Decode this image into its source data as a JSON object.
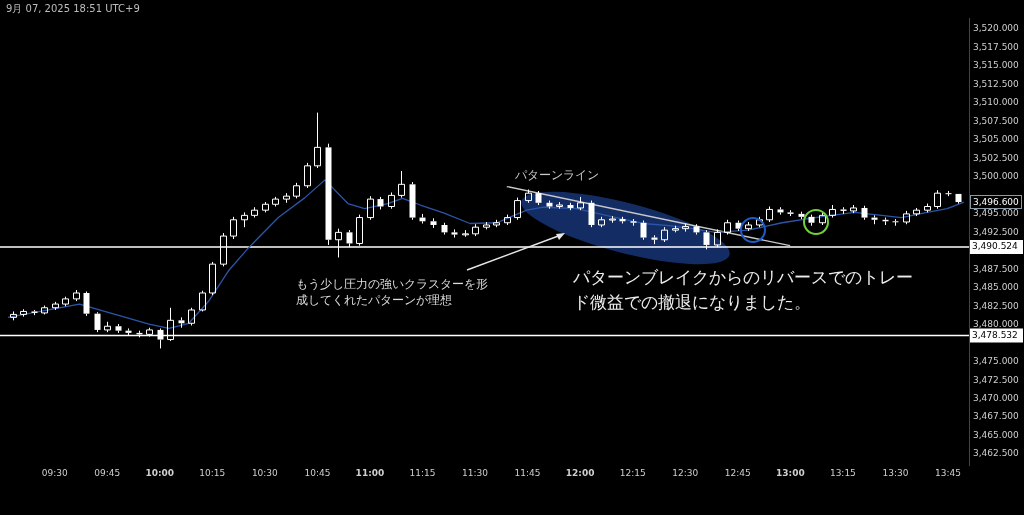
{
  "chart_data": {
    "type": "candlestick",
    "color": "#ffffff",
    "x": [
      9.3,
      9.35,
      9.4,
      9.45,
      9.5,
      9.55,
      9.6,
      9.65,
      9.7,
      9.75,
      9.8,
      9.85,
      9.9,
      9.95,
      10,
      10.05,
      10.1,
      10.15,
      10.2,
      10.25,
      10.3,
      10.35,
      10.4,
      10.45,
      10.5,
      10.55,
      10.6,
      10.65,
      10.7,
      10.75,
      10.8,
      10.85,
      10.9,
      10.95,
      11,
      11.05,
      11.1,
      11.15,
      11.2,
      11.25,
      11.3,
      11.35,
      11.4,
      11.45,
      11.5,
      11.55,
      11.6,
      11.65,
      11.7,
      11.75,
      11.8,
      11.85,
      11.9,
      11.95,
      12,
      12.05,
      12.1,
      12.15,
      12.2,
      12.25,
      12.3,
      12.35,
      12.4,
      12.45,
      12.5,
      12.55,
      12.6,
      12.65,
      12.7,
      12.75,
      12.8,
      12.85,
      12.9,
      12.95,
      13,
      13.05,
      13.1,
      13.15,
      13.2,
      13.25,
      13.3,
      13.35,
      13.4,
      13.45,
      13.5,
      13.55,
      13.6,
      13.65,
      13.7,
      13.75,
      13.8
    ],
    "ohlc": [
      [
        3481.0,
        3481.8,
        3480.6,
        3481.4
      ],
      [
        3481.4,
        3482.1,
        3481.1,
        3481.8
      ],
      [
        3481.8,
        3482.0,
        3481.3,
        3481.6
      ],
      [
        3481.6,
        3482.6,
        3481.4,
        3482.3
      ],
      [
        3482.3,
        3483.1,
        3482.0,
        3482.8
      ],
      [
        3482.8,
        3483.8,
        3482.5,
        3483.5
      ],
      [
        3483.5,
        3484.7,
        3483.2,
        3484.3
      ],
      [
        3484.3,
        3484.5,
        3481.2,
        3481.5
      ],
      [
        3481.5,
        3481.7,
        3479.0,
        3479.3
      ],
      [
        3479.3,
        3480.4,
        3479.0,
        3479.8
      ],
      [
        3479.8,
        3480.1,
        3478.9,
        3479.2
      ],
      [
        3479.2,
        3479.5,
        3478.5,
        3478.9
      ],
      [
        3478.9,
        3479.2,
        3478.3,
        3478.7
      ],
      [
        3478.7,
        3479.6,
        3478.4,
        3479.3
      ],
      [
        3479.3,
        3479.5,
        3476.8,
        3478.0
      ],
      [
        3478.0,
        3482.3,
        3477.8,
        3480.6
      ],
      [
        3480.6,
        3481.0,
        3479.6,
        3480.2
      ],
      [
        3480.2,
        3482.3,
        3479.9,
        3482.0
      ],
      [
        3482.0,
        3484.6,
        3481.8,
        3484.3
      ],
      [
        3484.3,
        3488.5,
        3484.0,
        3488.2
      ],
      [
        3488.2,
        3492.4,
        3487.9,
        3492.0
      ],
      [
        3492.0,
        3494.6,
        3491.6,
        3494.2
      ],
      [
        3494.2,
        3495.2,
        3493.2,
        3494.8
      ],
      [
        3494.8,
        3495.9,
        3494.5,
        3495.5
      ],
      [
        3495.5,
        3496.6,
        3495.2,
        3496.3
      ],
      [
        3496.3,
        3497.3,
        3496.0,
        3497.0
      ],
      [
        3497.0,
        3497.8,
        3496.5,
        3497.4
      ],
      [
        3497.4,
        3499.2,
        3497.1,
        3498.8
      ],
      [
        3498.8,
        3501.9,
        3498.5,
        3501.5
      ],
      [
        3501.5,
        3508.7,
        3501.2,
        3504.0
      ],
      [
        3504.0,
        3504.5,
        3490.8,
        3491.5
      ],
      [
        3491.5,
        3493.0,
        3489.1,
        3492.5
      ],
      [
        3492.5,
        3492.8,
        3490.5,
        3491.0
      ],
      [
        3491.0,
        3494.9,
        3490.7,
        3494.5
      ],
      [
        3494.5,
        3497.4,
        3494.2,
        3497.0
      ],
      [
        3497.0,
        3497.3,
        3495.6,
        3496.0
      ],
      [
        3496.0,
        3497.9,
        3495.7,
        3497.5
      ],
      [
        3497.5,
        3500.8,
        3497.2,
        3499.0
      ],
      [
        3499.0,
        3499.3,
        3494.2,
        3494.5
      ],
      [
        3494.5,
        3495.0,
        3493.7,
        3494.0
      ],
      [
        3494.0,
        3494.4,
        3493.1,
        3493.5
      ],
      [
        3493.5,
        3493.8,
        3492.2,
        3492.5
      ],
      [
        3492.5,
        3492.9,
        3491.8,
        3492.2
      ],
      [
        3492.2,
        3492.8,
        3491.9,
        3492.3
      ],
      [
        3492.3,
        3493.6,
        3492.0,
        3493.2
      ],
      [
        3493.2,
        3493.9,
        3492.9,
        3493.5
      ],
      [
        3493.5,
        3494.2,
        3493.2,
        3493.8
      ],
      [
        3493.8,
        3494.9,
        3493.5,
        3494.5
      ],
      [
        3494.5,
        3497.2,
        3494.2,
        3496.8
      ],
      [
        3496.8,
        3498.3,
        3496.5,
        3497.8
      ],
      [
        3497.8,
        3498.1,
        3496.2,
        3496.5
      ],
      [
        3496.5,
        3496.8,
        3495.7,
        3496.0
      ],
      [
        3496.0,
        3496.6,
        3495.7,
        3496.2
      ],
      [
        3496.2,
        3496.5,
        3495.5,
        3495.8
      ],
      [
        3495.8,
        3497.3,
        3495.5,
        3496.5
      ],
      [
        3496.5,
        3496.8,
        3493.2,
        3493.5
      ],
      [
        3493.5,
        3494.6,
        3493.2,
        3494.2
      ],
      [
        3494.2,
        3494.7,
        3493.8,
        3494.3
      ],
      [
        3494.3,
        3494.6,
        3493.7,
        3494.0
      ],
      [
        3494.0,
        3494.3,
        3493.4,
        3493.8
      ],
      [
        3493.8,
        3494.1,
        3491.5,
        3491.8
      ],
      [
        3491.8,
        3492.1,
        3490.9,
        3491.5
      ],
      [
        3491.5,
        3493.2,
        3491.2,
        3492.8
      ],
      [
        3492.8,
        3493.4,
        3492.5,
        3493.0
      ],
      [
        3493.0,
        3493.7,
        3492.6,
        3493.3
      ],
      [
        3493.3,
        3493.6,
        3492.2,
        3492.5
      ],
      [
        3492.5,
        3492.8,
        3490.2,
        3490.8
      ],
      [
        3490.8,
        3492.9,
        3490.5,
        3492.5
      ],
      [
        3492.5,
        3494.2,
        3492.2,
        3493.8
      ],
      [
        3493.8,
        3494.1,
        3492.7,
        3493.0
      ],
      [
        3493.0,
        3493.9,
        3492.7,
        3493.5
      ],
      [
        3493.5,
        3494.6,
        3493.2,
        3494.2
      ],
      [
        3494.2,
        3496.0,
        3493.9,
        3495.6
      ],
      [
        3495.6,
        3495.9,
        3494.9,
        3495.2
      ],
      [
        3495.2,
        3495.5,
        3494.7,
        3495.0
      ],
      [
        3495.0,
        3495.3,
        3494.3,
        3494.6
      ],
      [
        3494.6,
        3494.9,
        3493.4,
        3493.8
      ],
      [
        3493.8,
        3495.2,
        3493.5,
        3494.8
      ],
      [
        3494.8,
        3496.2,
        3494.5,
        3495.6
      ],
      [
        3495.6,
        3495.9,
        3495.0,
        3495.4
      ],
      [
        3495.4,
        3496.2,
        3495.1,
        3495.8
      ],
      [
        3495.8,
        3496.1,
        3494.2,
        3494.5
      ],
      [
        3494.5,
        3494.8,
        3493.6,
        3494.2
      ],
      [
        3494.2,
        3494.5,
        3493.5,
        3494.0
      ],
      [
        3494.0,
        3494.3,
        3493.4,
        3493.9
      ],
      [
        3493.9,
        3495.4,
        3493.6,
        3495.0
      ],
      [
        3495.0,
        3495.8,
        3494.7,
        3495.5
      ],
      [
        3495.5,
        3496.4,
        3495.2,
        3496.0
      ],
      [
        3496.0,
        3498.2,
        3495.7,
        3497.8
      ],
      [
        3497.8,
        3498.1,
        3497.4,
        3497.7
      ],
      [
        3497.7,
        3497.7,
        3496.4,
        3496.6
      ]
    ],
    "series": [
      {
        "type": "line",
        "color": "#2b55a8",
        "x": [
          9.278,
          9.618,
          9.949,
          10.044,
          10.138,
          10.233,
          10.327,
          10.422,
          10.564,
          10.691,
          10.786,
          10.895,
          10.975,
          11.084,
          11.155,
          11.24,
          11.353,
          11.476,
          11.604,
          11.746,
          11.826,
          11.982,
          12.171,
          12.299,
          12.422,
          12.535,
          12.644,
          12.8,
          12.961,
          13.117,
          13.306,
          13.434,
          13.528,
          13.651,
          13.746,
          13.826
        ],
        "values": [
          3481.0,
          3482.8,
          3480.1,
          3479.5,
          3480.2,
          3483.2,
          3487.3,
          3490.4,
          3494.5,
          3497.2,
          3499.6,
          3496.4,
          3495.7,
          3496.4,
          3497.1,
          3496.2,
          3495.1,
          3493.7,
          3493.8,
          3495.5,
          3495.9,
          3495.7,
          3494.5,
          3493.7,
          3493.4,
          3493.0,
          3492.5,
          3492.8,
          3493.8,
          3494.5,
          3495.2,
          3494.8,
          3494.5,
          3495.2,
          3495.7,
          3496.6
        ]
      },
      {
        "type": "line",
        "color": "#c8c8c8",
        "x": [
          11.651,
          12.999
        ],
        "values": [
          3498.7,
          3490.7
        ]
      }
    ],
    "xlim": [
      9.24,
      13.85
    ],
    "ylim": [
      3461,
      3521.5
    ],
    "xticks": [
      {
        "value": 9.5,
        "label": "09:30"
      },
      {
        "value": 9.75,
        "label": "09:45"
      },
      {
        "value": 10,
        "label": "10:00"
      },
      {
        "value": 10.25,
        "label": "10:15"
      },
      {
        "value": 10.5,
        "label": "10:30"
      },
      {
        "value": 10.75,
        "label": "10:45"
      },
      {
        "value": 11,
        "label": "11:00"
      },
      {
        "value": 11.25,
        "label": "11:15"
      },
      {
        "value": 11.5,
        "label": "11:30"
      },
      {
        "value": 11.75,
        "label": "11:45"
      },
      {
        "value": 12,
        "label": "12:00"
      },
      {
        "value": 12.25,
        "label": "12:15"
      },
      {
        "value": 12.5,
        "label": "12:30"
      },
      {
        "value": 12.75,
        "label": "12:45"
      },
      {
        "value": 13,
        "label": "13:00"
      },
      {
        "value": 13.25,
        "label": "13:15"
      },
      {
        "value": 13.5,
        "label": "13:30"
      },
      {
        "value": 13.75,
        "label": "13:45"
      }
    ],
    "yticks": [
      {
        "value": 3462.5,
        "label": "3,462.500"
      },
      {
        "value": 3465,
        "label": "3,465.000"
      },
      {
        "value": 3467.5,
        "label": "3,467.500"
      },
      {
        "value": 3470,
        "label": "3,470.000"
      },
      {
        "value": 3472.5,
        "label": "3,472.500"
      },
      {
        "value": 3475,
        "label": "3,475.000"
      },
      {
        "value": 3480,
        "label": "3,480.000"
      },
      {
        "value": 3482.5,
        "label": "3,482.500"
      },
      {
        "value": 3485,
        "label": "3,485.000"
      },
      {
        "value": 3487.5,
        "label": "3,487.500"
      },
      {
        "value": 3492.5,
        "label": "3,492.500"
      },
      {
        "value": 3495,
        "label": "3,495.000"
      },
      {
        "value": 3500,
        "label": "3,500.000"
      },
      {
        "value": 3502.5,
        "label": "3,502.500"
      },
      {
        "value": 3505,
        "label": "3,505.000"
      },
      {
        "value": 3507.5,
        "label": "3,507.500"
      },
      {
        "value": 3510,
        "label": "3,510.000"
      },
      {
        "value": 3512.5,
        "label": "3,512.500"
      },
      {
        "value": 3515,
        "label": "3,515.000"
      },
      {
        "value": 3517.5,
        "label": "3,517.500"
      },
      {
        "value": 3520,
        "label": "3,520.000"
      }
    ],
    "ref_lines": [
      {
        "axis": "y",
        "value": 3490.524,
        "label": "3,490.524",
        "color": "#ffffff"
      },
      {
        "axis": "y",
        "value": 3478.532,
        "label": "3,478.532",
        "color": "#ffffff"
      }
    ],
    "annotations": [
      "9月 07, 2025 18:51 UTC+9",
      "パターンライン",
      "もう少し圧力の強いクラスターを形成してくれたパターンが理想",
      "パターンブレイクからのリバースでのトレード微益での撤退になりました。",
      "3,496.600"
    ]
  }
}
